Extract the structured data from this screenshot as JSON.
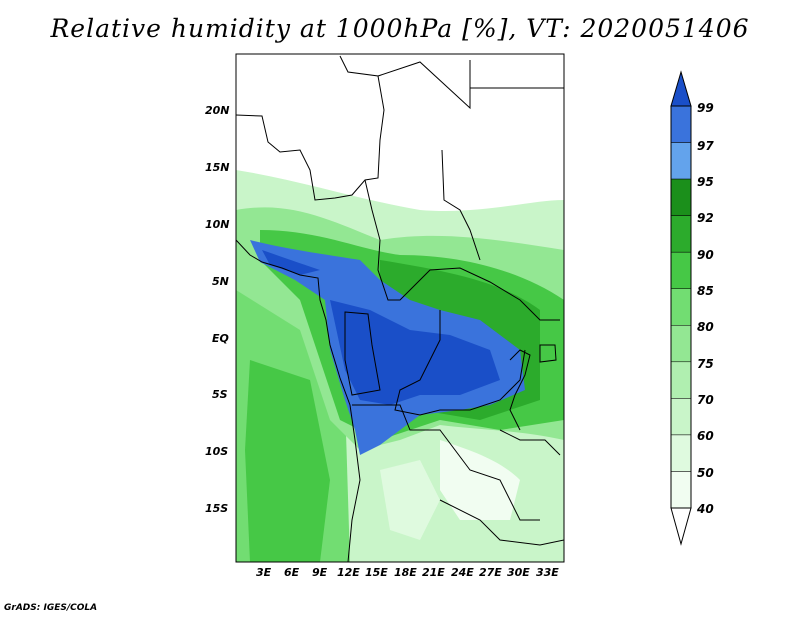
{
  "title": "Relative humidity at 1000hPa [%], VT: 2020051406",
  "credit": "GrADS: IGES/COLA",
  "map": {
    "lat_labels": [
      "20N",
      "15N",
      "10N",
      "5N",
      "EQ",
      "5S",
      "10S",
      "15S"
    ],
    "lon_labels": [
      "3E",
      "6E",
      "9E",
      "12E",
      "15E",
      "18E",
      "21E",
      "24E",
      "27E",
      "30E",
      "33E"
    ]
  },
  "colorbar": {
    "levels": [
      "99",
      "97",
      "95",
      "92",
      "90",
      "85",
      "80",
      "75",
      "70",
      "60",
      "50",
      "40"
    ],
    "colors": [
      "#1a4fc8",
      "#3a73dc",
      "#63a3ec",
      "#1b8f1b",
      "#2cab2c",
      "#46c846",
      "#72dd72",
      "#93e793",
      "#b0efb0",
      "#c9f5c9",
      "#dffadf",
      "#f1fdf1"
    ]
  }
}
